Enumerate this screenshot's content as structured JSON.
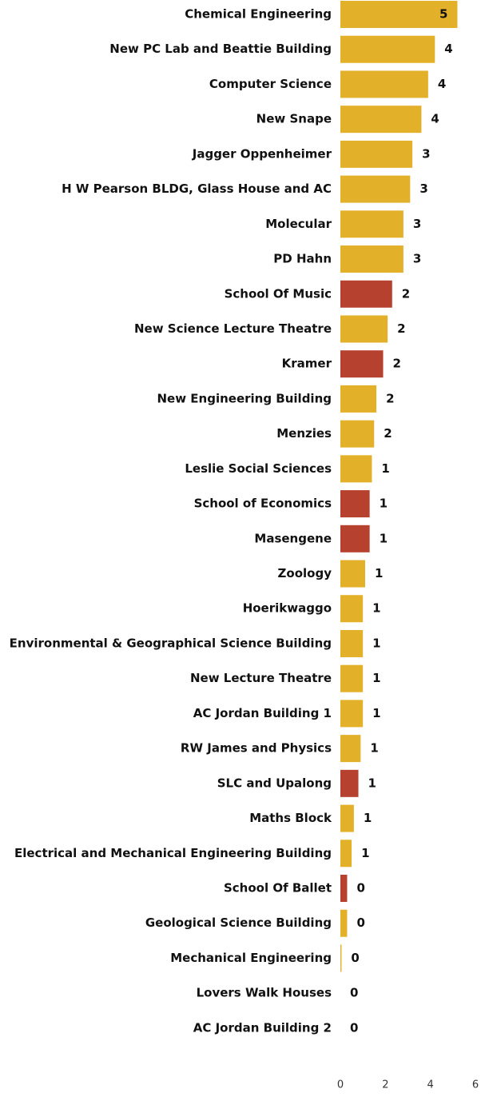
{
  "chart_data": {
    "type": "bar",
    "orientation": "horizontal",
    "categories": [
      "Chemical Engineering",
      "New PC Lab and Beattie Building",
      "Computer Science",
      "New Snape",
      "Jagger Oppenheimer",
      "H W Pearson BLDG, Glass House and AC",
      "Molecular",
      "PD Hahn",
      "School Of Music",
      "New Science Lecture Theatre",
      "Kramer",
      "New Engineering Building",
      "Menzies",
      "Leslie Social Sciences",
      "School of Economics",
      "Masengene",
      "Zoology",
      "Hoerikwaggo",
      "Environmental & Geographical Science Building",
      "New Lecture Theatre",
      "AC Jordan Building 1",
      "RW James and Physics",
      "SLC and Upalong",
      "Maths Block",
      "Electrical and Mechanical Engineering Building",
      "School Of Ballet",
      "Geological Science Building",
      "Mechanical Engineering",
      "Lovers Walk Houses",
      "AC Jordan Building 2"
    ],
    "values": [
      5.2,
      4.2,
      3.9,
      3.6,
      3.2,
      3.1,
      2.8,
      2.8,
      2.3,
      2.1,
      1.9,
      1.6,
      1.5,
      1.4,
      1.3,
      1.3,
      1.1,
      1.0,
      1.0,
      1.0,
      1.0,
      0.9,
      0.8,
      0.6,
      0.5,
      0.3,
      0.3,
      0.05,
      0,
      0
    ],
    "value_labels": [
      "5",
      "4",
      "4",
      "4",
      "3",
      "3",
      "3",
      "3",
      "2",
      "2",
      "2",
      "2",
      "2",
      "1",
      "1",
      "1",
      "1",
      "1",
      "1",
      "1",
      "1",
      "1",
      "1",
      "1",
      "1",
      "0",
      "0",
      "0",
      "0",
      "0"
    ],
    "colors": [
      "#e3b02a",
      "#e3b02a",
      "#e3b02a",
      "#e3b02a",
      "#e3b02a",
      "#e3b02a",
      "#e3b02a",
      "#e3b02a",
      "#b5412e",
      "#e3b02a",
      "#b5412e",
      "#e3b02a",
      "#e3b02a",
      "#e3b02a",
      "#b5412e",
      "#b5412e",
      "#e3b02a",
      "#e3b02a",
      "#e3b02a",
      "#e3b02a",
      "#e3b02a",
      "#e3b02a",
      "#b5412e",
      "#e3b02a",
      "#e3b02a",
      "#b5412e",
      "#e3b02a",
      "#e3b02a",
      "#e3b02a",
      "#e3b02a"
    ],
    "xlim": [
      0,
      6
    ],
    "xticks": [
      0,
      2,
      4,
      6
    ]
  }
}
